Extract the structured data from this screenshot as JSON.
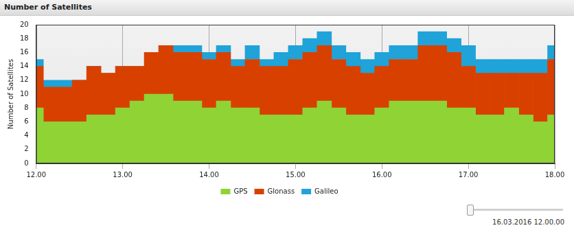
{
  "chart_data": {
    "type": "bar",
    "title": "Number of Satellites",
    "y_label": "Number of Satellites",
    "annotations": [
      "16.03.2016 12.00.00"
    ],
    "categories": [
      "12.00",
      null,
      null,
      null,
      null,
      null,
      "13.00",
      null,
      null,
      null,
      null,
      null,
      "14.00",
      null,
      null,
      null,
      null,
      null,
      "15.00",
      null,
      null,
      null,
      null,
      null,
      "16.00",
      null,
      null,
      null,
      null,
      null,
      "17.00",
      null,
      null,
      null,
      null,
      null,
      "18.00"
    ],
    "series": [
      {
        "name": "GPS",
        "color": "#8fd335",
        "values": [
          8,
          6,
          6,
          6,
          7,
          7,
          8,
          9,
          10,
          10,
          9,
          9,
          8,
          9,
          8,
          8,
          7,
          7,
          7,
          8,
          9,
          8,
          7,
          7,
          8,
          9,
          9,
          9,
          9,
          8,
          8,
          7,
          7,
          8,
          7,
          6,
          7
        ]
      },
      {
        "name": "Glonass",
        "color": "#d84000",
        "values": [
          6,
          5,
          5,
          6,
          7,
          6,
          6,
          5,
          6,
          7,
          7,
          7,
          7,
          7,
          6,
          7,
          7,
          7,
          8,
          8,
          8,
          7,
          7,
          6,
          6,
          6,
          6,
          8,
          8,
          8,
          6,
          6,
          6,
          5,
          6,
          7,
          8
        ]
      },
      {
        "name": "Galileo",
        "color": "#1fa3d8",
        "values": [
          1,
          1,
          1,
          0,
          0,
          0,
          0,
          0,
          0,
          0,
          1,
          1,
          1,
          1,
          1,
          2,
          1,
          2,
          2,
          2,
          2,
          2,
          2,
          2,
          2,
          2,
          2,
          2,
          2,
          2,
          3,
          2,
          2,
          2,
          2,
          2,
          2
        ]
      }
    ],
    "stacked": true,
    "ylim": [
      0,
      20
    ],
    "yticks": [
      0,
      2,
      4,
      6,
      8,
      10,
      12,
      14,
      16,
      18,
      20
    ],
    "grid": true,
    "legend": "bottom"
  }
}
